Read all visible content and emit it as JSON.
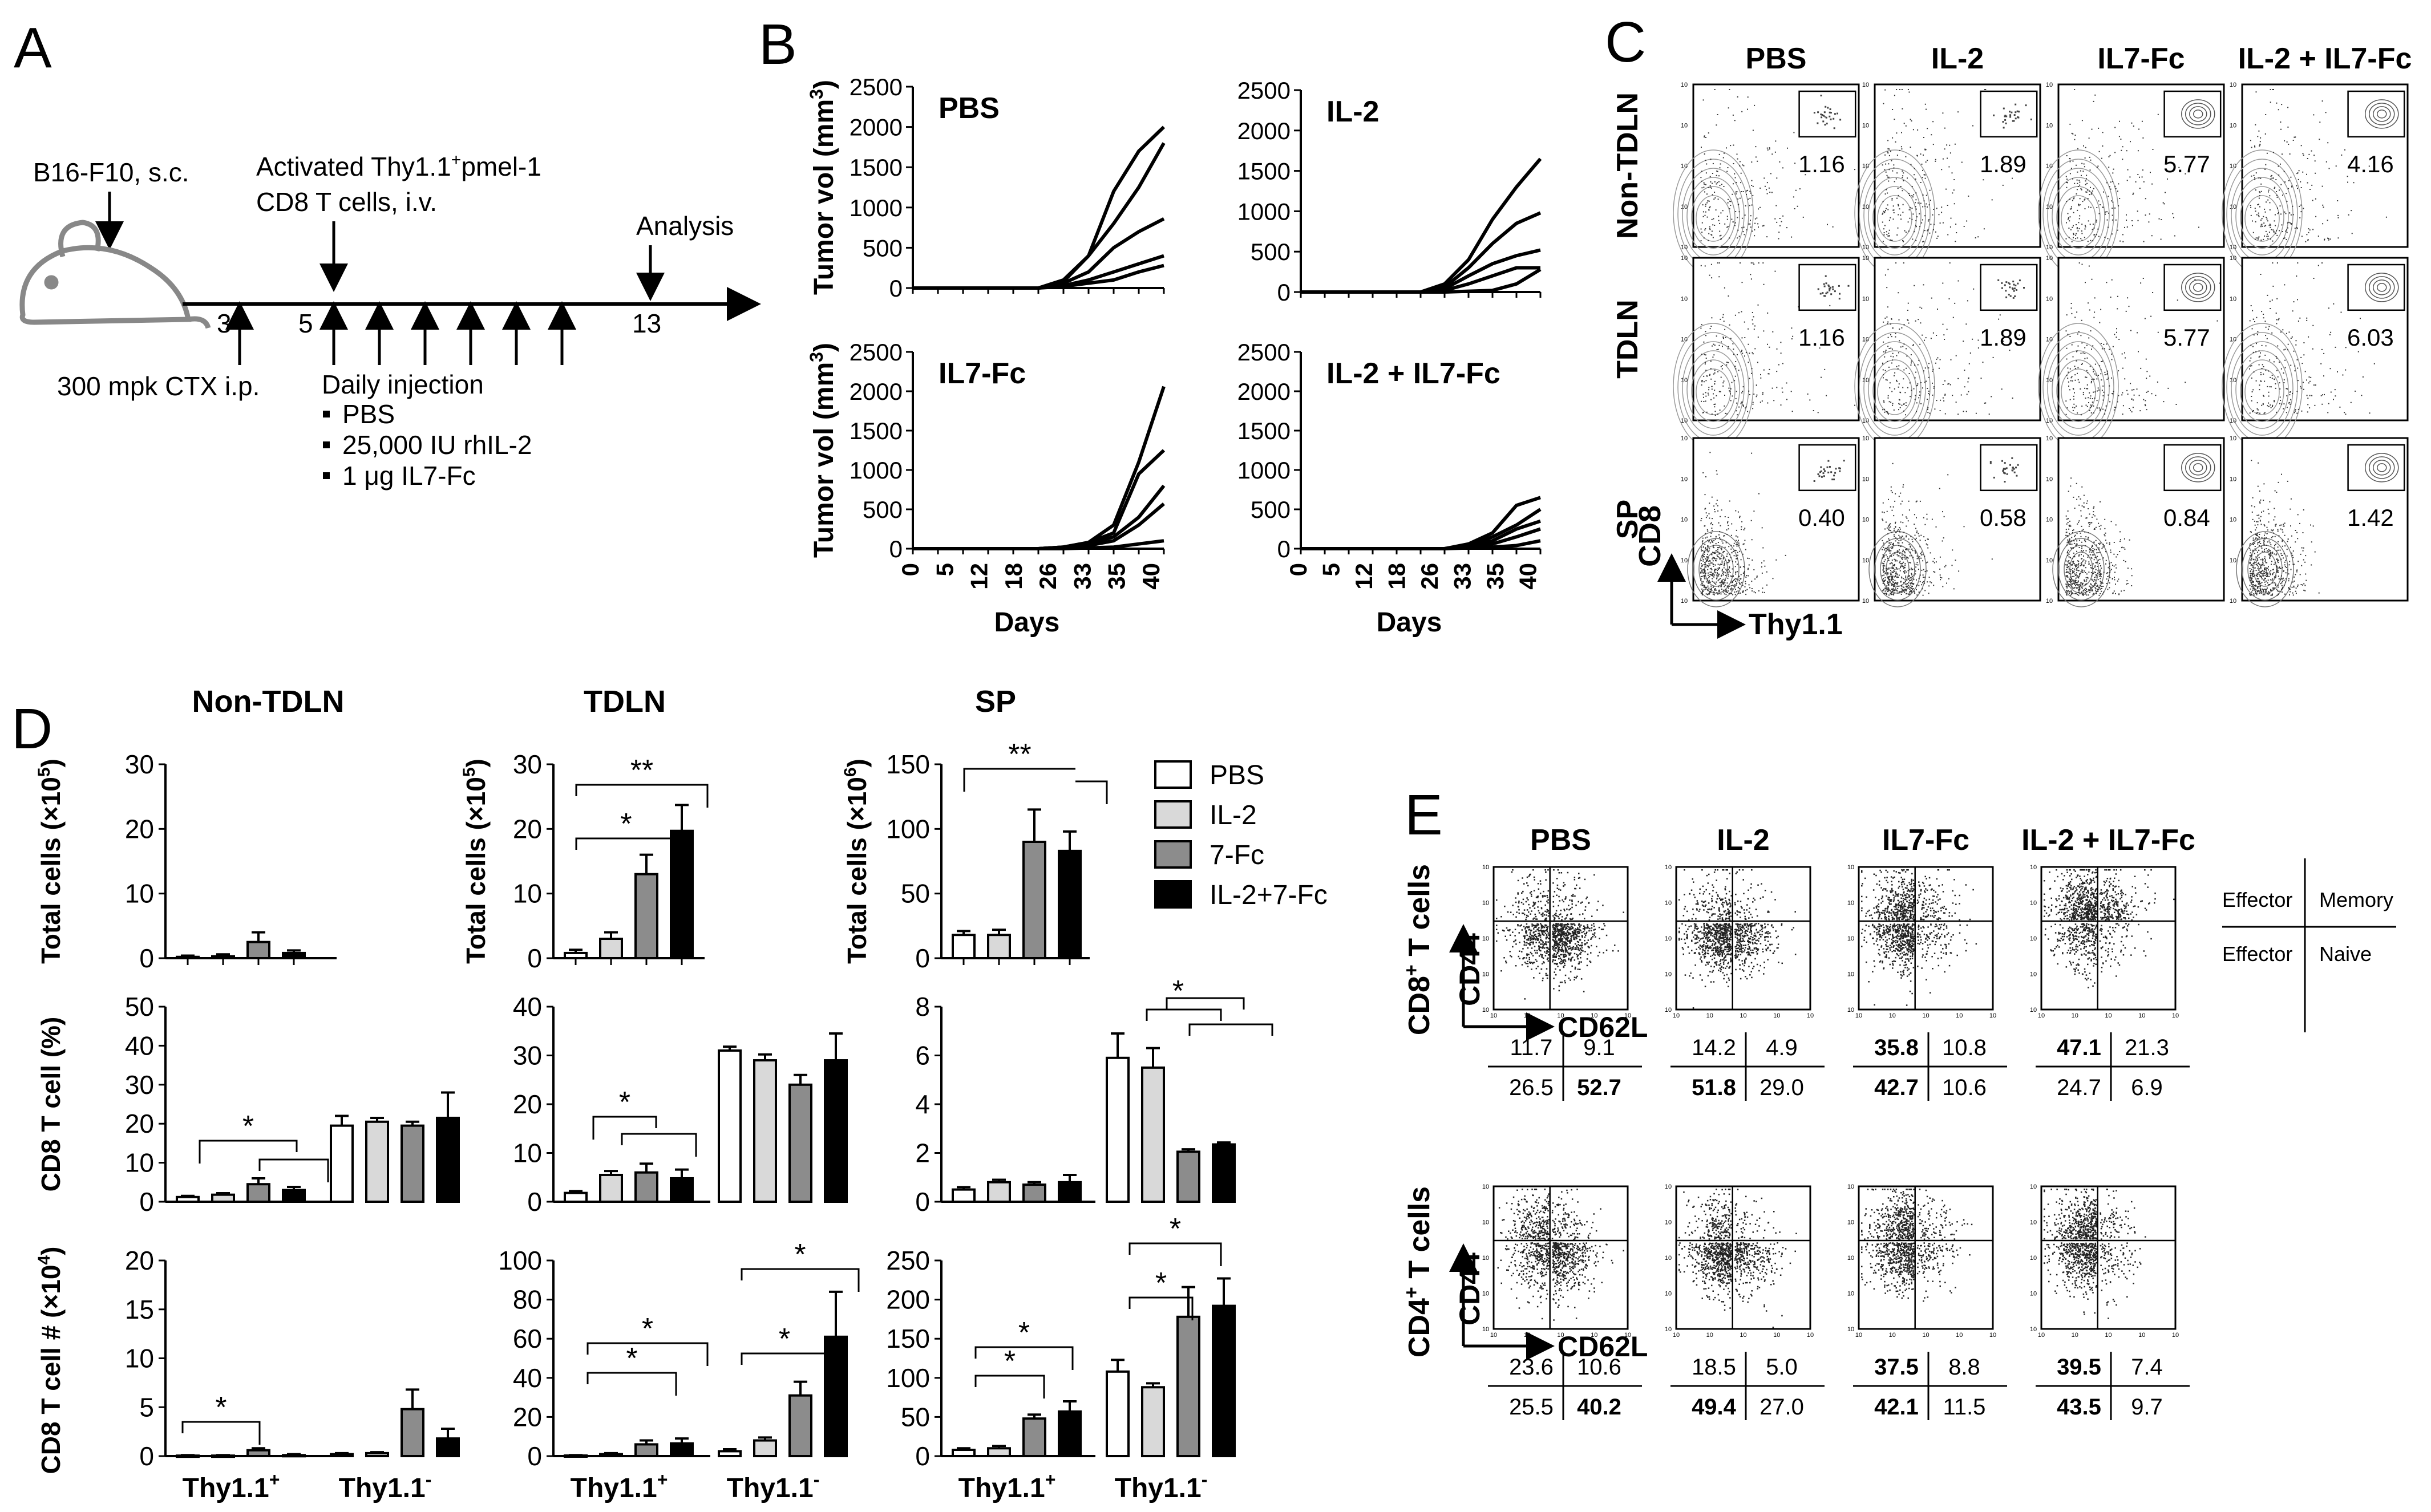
{
  "panels": {
    "A": "A",
    "B": "B",
    "C": "C",
    "D": "D",
    "E": "E"
  },
  "panelA": {
    "b16": "B16-F10, s.c.",
    "activated_l1": "Activated Thy1.1",
    "activated_sup": "+",
    "activated_l1b": "pmel-1",
    "activated_l2": "CD8 T cells, i.v.",
    "analysis": "Analysis",
    "day3": "3",
    "day5": "5",
    "day13": "13",
    "ctx": "300 mpk CTX i.p.",
    "daily": "Daily injection",
    "treatments": [
      "PBS",
      "25,000 IU rhIL-2",
      "1 μg IL7-Fc"
    ]
  },
  "panelB": {
    "ylabel": "Tumor vol (mm",
    "ylabel_sup": "3",
    "ylabel_end": ")",
    "xlabel": "Days",
    "xticks": [
      "0",
      "5",
      "12",
      "18",
      "26",
      "33",
      "35",
      "40"
    ],
    "yticks": [
      "0",
      "500",
      "1000",
      "1500",
      "2000",
      "2500"
    ],
    "groups": [
      "PBS",
      "IL-2",
      "IL7-Fc",
      "IL-2 + IL7-Fc"
    ],
    "curves": [
      [
        [
          0,
          0,
          0,
          0,
          0,
          0,
          100,
          400,
          800,
          1250,
          1800
        ],
        [
          0,
          0,
          0,
          0,
          0,
          0,
          80,
          400,
          1200,
          1700,
          2000
        ],
        [
          0,
          0,
          0,
          0,
          0,
          0,
          60,
          200,
          500,
          700,
          860
        ],
        [
          0,
          0,
          0,
          0,
          0,
          0,
          30,
          100,
          200,
          300,
          400
        ],
        [
          0,
          0,
          0,
          0,
          0,
          0,
          20,
          60,
          100,
          200,
          280
        ]
      ],
      [
        [
          0,
          0,
          0,
          0,
          0,
          0,
          100,
          400,
          900,
          1300,
          1650
        ],
        [
          0,
          0,
          0,
          0,
          0,
          0,
          60,
          300,
          600,
          850,
          980
        ],
        [
          0,
          0,
          0,
          0,
          0,
          0,
          40,
          200,
          350,
          450,
          520
        ],
        [
          0,
          0,
          0,
          0,
          0,
          0,
          20,
          100,
          200,
          300,
          300
        ],
        [
          0,
          0,
          0,
          0,
          0,
          0,
          0,
          10,
          20,
          100,
          280
        ]
      ],
      [
        [
          0,
          0,
          0,
          0,
          0,
          0,
          20,
          80,
          300,
          1100,
          2060
        ],
        [
          0,
          0,
          0,
          0,
          0,
          0,
          20,
          80,
          200,
          950,
          1250
        ],
        [
          0,
          0,
          0,
          0,
          0,
          0,
          20,
          60,
          150,
          400,
          800
        ],
        [
          0,
          0,
          0,
          0,
          0,
          0,
          10,
          40,
          100,
          300,
          570
        ],
        [
          0,
          0,
          0,
          0,
          0,
          0,
          0,
          10,
          20,
          60,
          100
        ]
      ],
      [
        [
          0,
          0,
          0,
          0,
          0,
          0,
          0,
          60,
          200,
          550,
          650
        ],
        [
          0,
          0,
          0,
          0,
          0,
          0,
          0,
          40,
          150,
          300,
          500
        ],
        [
          0,
          0,
          0,
          0,
          0,
          0,
          0,
          30,
          100,
          250,
          350
        ],
        [
          0,
          0,
          0,
          0,
          0,
          0,
          0,
          20,
          60,
          150,
          250
        ],
        [
          0,
          0,
          0,
          0,
          0,
          0,
          0,
          10,
          20,
          40,
          100
        ]
      ]
    ]
  },
  "panelC": {
    "groups": [
      "PBS",
      "IL-2",
      "IL7-Fc",
      "IL-2 + IL7-Fc"
    ],
    "rows": [
      "Non-TDLN",
      "TDLN",
      "SP"
    ],
    "values": [
      [
        "1.16",
        "1.89",
        "5.77",
        "4.16"
      ],
      [
        "1.16",
        "1.89",
        "5.77",
        "6.03"
      ],
      [
        "0.40",
        "0.58",
        "0.84",
        "1.42"
      ]
    ],
    "yaxis": "CD8",
    "xaxis": "Thy1.1"
  },
  "panelD": {
    "columns": [
      "Non-TDLN",
      "TDLN",
      "SP"
    ],
    "legend": [
      "PBS",
      "IL-2",
      "7-Fc",
      "IL-2+7-Fc"
    ],
    "legend_colors": [
      "#ffffff",
      "#d9d9d9",
      "#8c8c8c",
      "#000000"
    ],
    "row_labels": {
      "total": "Total cells (×10",
      "total_sup_ln": "5",
      "total_sup_sp": "6",
      "total_end": ")",
      "pct": "CD8 T cell (%)",
      "num": "CD8 T cell # (×10",
      "num_sup": "4",
      "num_end": ")"
    },
    "xlabels": {
      "pos": "Thy1.1",
      "neg": "Thy1.1",
      "pos_sup": "+",
      "neg_sup": "-"
    },
    "sig": [
      "*",
      "**"
    ],
    "chart_data": [
      {
        "type": "bar",
        "title": "Non-TDLN",
        "ylabel": "Total cells (×10^5)",
        "ylim": [
          0,
          30
        ],
        "yticks": [
          "0",
          "10",
          "20",
          "30"
        ],
        "series": [
          {
            "name": "PBS",
            "values": [
              0.2
            ]
          },
          {
            "name": "IL-2",
            "values": [
              0.3
            ]
          },
          {
            "name": "7-Fc",
            "values": [
              2.5
            ]
          },
          {
            "name": "IL-2+7-Fc",
            "values": [
              0.8
            ]
          }
        ]
      },
      {
        "type": "bar",
        "title": "TDLN",
        "ylabel": "Total cells (×10^5)",
        "ylim": [
          0,
          30
        ],
        "yticks": [
          "0",
          "10",
          "20",
          "30"
        ],
        "series": [
          {
            "name": "PBS",
            "values": [
              0.8
            ]
          },
          {
            "name": "IL-2",
            "values": [
              3
            ]
          },
          {
            "name": "7-Fc",
            "values": [
              13
            ]
          },
          {
            "name": "IL-2+7-Fc",
            "values": [
              19.7
            ]
          }
        ]
      },
      {
        "type": "bar",
        "title": "SP",
        "ylabel": "Total cells (×10^6)",
        "ylim": [
          0,
          150
        ],
        "yticks": [
          "0",
          "50",
          "100",
          "150"
        ],
        "series": [
          {
            "name": "PBS",
            "values": [
              18
            ]
          },
          {
            "name": "IL-2",
            "values": [
              18
            ]
          },
          {
            "name": "7-Fc",
            "values": [
              90
            ]
          },
          {
            "name": "IL-2+7-Fc",
            "values": [
              83
            ]
          }
        ]
      },
      {
        "type": "bar",
        "title": "Non-TDLN",
        "ylabel": "CD8 T cell (%)",
        "categories": [
          "Thy1.1+",
          "Thy1.1-"
        ],
        "ylim": [
          0,
          50
        ],
        "yticks": [
          "0",
          "10",
          "20",
          "30",
          "40",
          "50"
        ],
        "series": [
          {
            "name": "PBS",
            "values": [
              1.2,
              19.5
            ]
          },
          {
            "name": "IL-2",
            "values": [
              1.8,
              20.5
            ]
          },
          {
            "name": "7-Fc",
            "values": [
              4.5,
              19.5
            ]
          },
          {
            "name": "IL-2+7-Fc",
            "values": [
              3,
              21.5
            ]
          }
        ]
      },
      {
        "type": "bar",
        "title": "TDLN",
        "ylabel": "CD8 T cell (%)",
        "categories": [
          "Thy1.1+",
          "Thy1.1-"
        ],
        "ylim": [
          0,
          40
        ],
        "yticks": [
          "0",
          "10",
          "20",
          "30",
          "40"
        ],
        "series": [
          {
            "name": "PBS",
            "values": [
              1.8,
              31
            ]
          },
          {
            "name": "IL-2",
            "values": [
              5.5,
              29
            ]
          },
          {
            "name": "7-Fc",
            "values": [
              6,
              24
            ]
          },
          {
            "name": "IL-2+7-Fc",
            "values": [
              4.8,
              29
            ]
          }
        ]
      },
      {
        "type": "bar",
        "title": "SP",
        "ylabel": "CD8 T cell (%)",
        "categories": [
          "Thy1.1+",
          "Thy1.1-"
        ],
        "ylim": [
          0,
          8
        ],
        "yticks": [
          "0",
          "2",
          "4",
          "6",
          "8"
        ],
        "series": [
          {
            "name": "PBS",
            "values": [
              0.5,
              5.9
            ]
          },
          {
            "name": "IL-2",
            "values": [
              0.8,
              5.5
            ]
          },
          {
            "name": "7-Fc",
            "values": [
              0.7,
              2.05
            ]
          },
          {
            "name": "IL-2+7-Fc",
            "values": [
              0.8,
              2.35
            ]
          }
        ]
      },
      {
        "type": "bar",
        "title": "Non-TDLN",
        "ylabel": "CD8 T cell # (×10^4)",
        "categories": [
          "Thy1.1+",
          "Thy1.1-"
        ],
        "ylim": [
          0,
          20
        ],
        "yticks": [
          "0",
          "5",
          "10",
          "15",
          "20"
        ],
        "series": [
          {
            "name": "PBS",
            "values": [
              0.05,
              0.2
            ]
          },
          {
            "name": "IL-2",
            "values": [
              0.05,
              0.3
            ]
          },
          {
            "name": "7-Fc",
            "values": [
              0.6,
              4.8
            ]
          },
          {
            "name": "IL-2+7-Fc",
            "values": [
              0.1,
              1.8
            ]
          }
        ]
      },
      {
        "type": "bar",
        "title": "TDLN",
        "ylabel": "CD8 T cell # (×10^4)",
        "categories": [
          "Thy1.1+",
          "Thy1.1-"
        ],
        "ylim": [
          0,
          100
        ],
        "yticks": [
          "0",
          "20",
          "40",
          "60",
          "80",
          "100"
        ],
        "series": [
          {
            "name": "PBS",
            "values": [
              0.3,
              2.5
            ]
          },
          {
            "name": "IL-2",
            "values": [
              1,
              8
            ]
          },
          {
            "name": "7-Fc",
            "values": [
              6,
              31
            ]
          },
          {
            "name": "IL-2+7-Fc",
            "values": [
              6.5,
              61
            ]
          }
        ]
      },
      {
        "type": "bar",
        "title": "SP",
        "ylabel": "CD8 T cell # (×10^4)",
        "categories": [
          "Thy1.1+",
          "Thy1.1-"
        ],
        "ylim": [
          0,
          250
        ],
        "yticks": [
          "0",
          "50",
          "100",
          "150",
          "200",
          "250"
        ],
        "series": [
          {
            "name": "PBS",
            "values": [
              8,
              108
            ]
          },
          {
            "name": "IL-2",
            "values": [
              10,
              88
            ]
          },
          {
            "name": "7-Fc",
            "values": [
              48,
              178
            ]
          },
          {
            "name": "IL-2+7-Fc",
            "values": [
              57,
              192
            ]
          }
        ]
      }
    ],
    "errors": [
      [
        0.2,
        0.3,
        1.5,
        0.4
      ],
      [
        0.5,
        1,
        3,
        4
      ],
      [
        3,
        4,
        25,
        15
      ],
      [
        [
          0.3,
          2.5
        ],
        [
          0.4,
          1
        ],
        [
          1.5,
          1
        ],
        [
          0.8,
          6.5
        ]
      ],
      [
        [
          0.4,
          0.8
        ],
        [
          0.8,
          1.2
        ],
        [
          1.8,
          2
        ],
        [
          1.8,
          5.5
        ]
      ],
      [
        [
          0.1,
          1
        ],
        [
          0.1,
          0.8
        ],
        [
          0.1,
          0.1
        ],
        [
          0.3,
          0.08
        ]
      ],
      [
        [
          0.05,
          0.1
        ],
        [
          0.05,
          0.1
        ],
        [
          0.2,
          2
        ],
        [
          0.1,
          1
        ]
      ],
      [
        [
          0.2,
          1
        ],
        [
          0.5,
          1.5
        ],
        [
          2,
          7
        ],
        [
          2.5,
          23
        ]
      ],
      [
        [
          2,
          15
        ],
        [
          3,
          5
        ],
        [
          5,
          38
        ],
        [
          13,
          35
        ]
      ]
    ]
  },
  "panelE": {
    "groups": [
      "PBS",
      "IL-2",
      "IL7-Fc",
      "IL-2 + IL7-Fc"
    ],
    "cd8_label": "CD8",
    "cd4_label": "CD4",
    "cell_sup": "+",
    "cells": " T cells",
    "yaxis": "CD44",
    "xaxis": "CD62L",
    "quad_legend": [
      "Effector",
      "Memory",
      "Effector",
      "Naive"
    ],
    "cd8_values": [
      [
        "11.7",
        "9.1",
        "26.5",
        "52.7"
      ],
      [
        "14.2",
        "4.9",
        "51.8",
        "29.0"
      ],
      [
        "35.8",
        "10.8",
        "42.7",
        "10.6"
      ],
      [
        "47.1",
        "21.3",
        "24.7",
        "6.9"
      ]
    ],
    "cd8_bold": [
      [
        false,
        false,
        false,
        true
      ],
      [
        false,
        false,
        true,
        false
      ],
      [
        true,
        false,
        true,
        false
      ],
      [
        true,
        false,
        false,
        false
      ]
    ],
    "cd4_values": [
      [
        "23.6",
        "10.6",
        "25.5",
        "40.2"
      ],
      [
        "18.5",
        "5.0",
        "49.4",
        "27.0"
      ],
      [
        "37.5",
        "8.8",
        "42.1",
        "11.5"
      ],
      [
        "39.5",
        "7.4",
        "43.5",
        "9.7"
      ]
    ],
    "cd4_bold": [
      [
        false,
        false,
        false,
        true
      ],
      [
        false,
        false,
        true,
        false
      ],
      [
        true,
        false,
        true,
        false
      ],
      [
        true,
        false,
        true,
        false
      ]
    ],
    "tick_label": "10"
  }
}
